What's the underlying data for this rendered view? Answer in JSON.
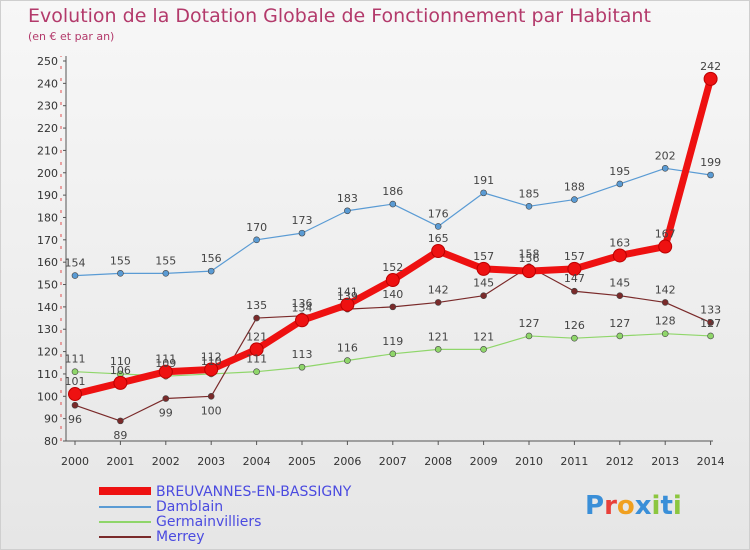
{
  "header": {
    "title": "Evolution de la Dotation Globale de Fonctionnement par Habitant",
    "subtitle": "(en € et par an)"
  },
  "logo": {
    "text": "Proxiti",
    "letter_colors": [
      "#3a8fd8",
      "#e8403a",
      "#f0a020",
      "#3a8fd8",
      "#8cc63f",
      "#3a8fd8",
      "#8cc63f"
    ]
  },
  "chart_data": {
    "type": "line",
    "title": "Evolution de la Dotation Globale de Fonctionnement par Habitant",
    "subtitle": "(en € et par an)",
    "xlabel": "",
    "ylabel": "",
    "x": [
      "2000",
      "2001",
      "2002",
      "2003",
      "2004",
      "2005",
      "2006",
      "2007",
      "2008",
      "2009",
      "2010",
      "2011",
      "2012",
      "2013",
      "2014"
    ],
    "ylim": [
      80,
      250
    ],
    "ystep": 10,
    "grid": false,
    "legend_position": "bottom-left",
    "series": [
      {
        "name": "BREUVANNES-EN-BASSIGNY",
        "color": "#ee1111",
        "emphasis": true,
        "values": [
          101,
          106,
          111,
          112,
          121,
          134,
          141,
          152,
          165,
          157,
          156,
          157,
          163,
          167,
          242
        ],
        "labels": [
          "101",
          "106",
          "111",
          "112",
          "121",
          "134",
          "141",
          "152",
          "165",
          "157",
          "156",
          "157",
          "163",
          "167",
          "242"
        ]
      },
      {
        "name": "Damblain",
        "color": "#5a9bd4",
        "values": [
          154,
          155,
          155,
          156,
          170,
          173,
          183,
          186,
          176,
          191,
          185,
          188,
          195,
          202,
          199
        ],
        "labels": [
          "154",
          "155",
          "155",
          "156",
          "170",
          "173",
          "183",
          "186",
          "176",
          "191",
          "185",
          "188",
          "195",
          "202",
          "199"
        ]
      },
      {
        "name": "Germainvilliers",
        "color": "#8fd66a",
        "values": [
          111,
          110,
          109,
          110,
          111,
          113,
          116,
          119,
          121,
          121,
          127,
          126,
          127,
          128,
          127
        ],
        "labels": [
          "111",
          "110",
          "109",
          "110",
          "111",
          "113",
          "116",
          "119",
          "121",
          "121",
          "127",
          "126",
          "127",
          "128",
          "127"
        ]
      },
      {
        "name": "Merrey",
        "color": "#7a2a2a",
        "values": [
          96,
          89,
          99,
          100,
          135,
          136,
          139,
          140,
          142,
          145,
          158,
          147,
          145,
          142,
          133
        ],
        "labels": [
          "96",
          "89",
          "99",
          "100",
          "135",
          "136",
          "139",
          "140",
          "142",
          "145",
          "158",
          "147",
          "145",
          "142",
          "133"
        ]
      }
    ]
  }
}
